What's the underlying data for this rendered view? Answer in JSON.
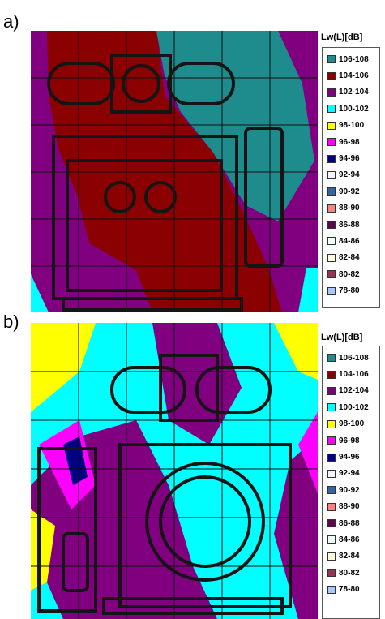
{
  "panels": [
    {
      "label": "a)",
      "legend": {
        "title": "Lw(L)[dB]",
        "items": [
          {
            "label": "106-108",
            "color": "#1e8c8c"
          },
          {
            "label": "104-106",
            "color": "#8b0000"
          },
          {
            "label": "102-104",
            "color": "#800080"
          },
          {
            "label": "100-102",
            "color": "#00ffff"
          },
          {
            "label": "98-100",
            "color": "#ffff00"
          },
          {
            "label": "96-98",
            "color": "#ff00ff"
          },
          {
            "label": "94-96",
            "color": "#000080"
          },
          {
            "label": "92-94",
            "color": "#f4f4ff"
          },
          {
            "label": "90-92",
            "color": "#3366a8"
          },
          {
            "label": "88-90",
            "color": "#ff8080"
          },
          {
            "label": "86-88",
            "color": "#5a0a4a"
          },
          {
            "label": "84-86",
            "color": "#f0fff8"
          },
          {
            "label": "82-84",
            "color": "#ffffe0"
          },
          {
            "label": "80-82",
            "color": "#993355"
          },
          {
            "label": "78-80",
            "color": "#a8c8ff"
          }
        ]
      }
    },
    {
      "label": "b)",
      "legend": {
        "title": "Lw(L)[dB]",
        "items": [
          {
            "label": "106-108",
            "color": "#1e8c8c"
          },
          {
            "label": "104-106",
            "color": "#8b0000"
          },
          {
            "label": "102-104",
            "color": "#800080"
          },
          {
            "label": "100-102",
            "color": "#00ffff"
          },
          {
            "label": "98-100",
            "color": "#ffff00"
          },
          {
            "label": "96-98",
            "color": "#ff00ff"
          },
          {
            "label": "94-96",
            "color": "#000080"
          },
          {
            "label": "92-94",
            "color": "#f4f4ff"
          },
          {
            "label": "90-92",
            "color": "#3366a8"
          },
          {
            "label": "88-90",
            "color": "#ff8080"
          },
          {
            "label": "86-88",
            "color": "#5a0a4a"
          },
          {
            "label": "84-86",
            "color": "#f0fff8"
          },
          {
            "label": "82-84",
            "color": "#ffffe0"
          },
          {
            "label": "80-82",
            "color": "#993355"
          },
          {
            "label": "78-80",
            "color": "#a8c8ff"
          }
        ]
      }
    }
  ]
}
